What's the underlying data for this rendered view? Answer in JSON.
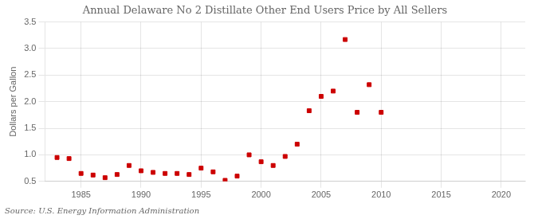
{
  "chart_data": {
    "type": "scatter",
    "title": "Annual Delaware No 2 Distillate Other End Users Price by All Sellers",
    "ylabel": "Dollars per Gallon",
    "annotation": "Source: U.S. Energy Information Administration",
    "x": [
      1983,
      1984,
      1985,
      1986,
      1987,
      1988,
      1989,
      1990,
      1991,
      1992,
      1993,
      1994,
      1995,
      1996,
      1997,
      1998,
      1999,
      2000,
      2001,
      2002,
      2003,
      2004,
      2005,
      2006,
      2007,
      2008,
      2009,
      2010
    ],
    "values": [
      0.95,
      0.93,
      0.65,
      0.62,
      0.57,
      0.63,
      0.8,
      0.7,
      0.67,
      0.65,
      0.65,
      0.63,
      0.75,
      0.68,
      0.52,
      0.6,
      1.0,
      0.87,
      0.8,
      0.97,
      1.2,
      1.83,
      2.1,
      2.2,
      3.17,
      1.8,
      2.32,
      1.8
    ],
    "color": "#cc0000",
    "marker": "square",
    "xlim": [
      1982,
      2022
    ],
    "xticks": [
      1985,
      1990,
      1995,
      2000,
      2005,
      2010,
      2015,
      2020
    ],
    "ylim": [
      0.5,
      3.5
    ],
    "yticks": [
      0.5,
      {
        "value": 1.0,
        "label": "1.0"
      },
      1.5,
      {
        "value": 2.0,
        "label": "2.0"
      },
      2.5,
      {
        "value": 3.0,
        "label": "3.0"
      },
      3.5
    ],
    "grid": true
  }
}
